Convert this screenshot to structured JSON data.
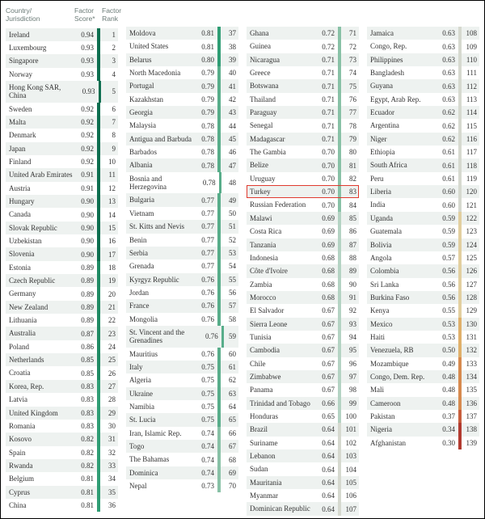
{
  "headers": {
    "country": "Country/\nJurisdiction",
    "score": "Factor\nScore*",
    "rank": "Factor\nRank"
  },
  "style": {
    "alt_row_bg": "#eef2f0",
    "row_bg": "#ffffff",
    "highlight_color": "#e03a2f",
    "bar_scale": {
      "stops": [
        {
          "min": 0.9,
          "color": "#0b6e4f"
        },
        {
          "min": 0.85,
          "color": "#1f8a63"
        },
        {
          "min": 0.8,
          "color": "#2f9d74"
        },
        {
          "min": 0.75,
          "color": "#58ad8a"
        },
        {
          "min": 0.7,
          "color": "#88c1a6"
        },
        {
          "min": 0.65,
          "color": "#b4d3c3"
        },
        {
          "min": 0.6,
          "color": "#d6d9cf"
        },
        {
          "min": 0.55,
          "color": "#e2cf9f"
        },
        {
          "min": 0.5,
          "color": "#e0b06a"
        },
        {
          "min": 0.45,
          "color": "#d78a4e"
        },
        {
          "min": 0.35,
          "color": "#c85e3c"
        },
        {
          "min": 0.0,
          "color": "#b23a2f"
        }
      ]
    }
  },
  "columns": [
    [
      {
        "country": "Ireland",
        "score": "0.94",
        "rank": "1"
      },
      {
        "country": "Luxembourg",
        "score": "0.93",
        "rank": "2"
      },
      {
        "country": "Singapore",
        "score": "0.93",
        "rank": "3"
      },
      {
        "country": "Norway",
        "score": "0.93",
        "rank": "4"
      },
      {
        "country": "Hong Kong SAR, China",
        "score": "0.93",
        "rank": "5"
      },
      {
        "country": "Sweden",
        "score": "0.92",
        "rank": "6"
      },
      {
        "country": "Malta",
        "score": "0.92",
        "rank": "7"
      },
      {
        "country": "Denmark",
        "score": "0.92",
        "rank": "8"
      },
      {
        "country": "Japan",
        "score": "0.92",
        "rank": "9"
      },
      {
        "country": "Finland",
        "score": "0.92",
        "rank": "10"
      },
      {
        "country": "United Arab Emirates",
        "score": "0.91",
        "rank": "11"
      },
      {
        "country": "Austria",
        "score": "0.91",
        "rank": "12"
      },
      {
        "country": "Hungary",
        "score": "0.90",
        "rank": "13"
      },
      {
        "country": "Canada",
        "score": "0.90",
        "rank": "14"
      },
      {
        "country": "Slovak Republic",
        "score": "0.90",
        "rank": "15"
      },
      {
        "country": "Uzbekistan",
        "score": "0.90",
        "rank": "16"
      },
      {
        "country": "Slovenia",
        "score": "0.90",
        "rank": "17"
      },
      {
        "country": "Estonia",
        "score": "0.89",
        "rank": "18"
      },
      {
        "country": "Czech Republic",
        "score": "0.89",
        "rank": "19"
      },
      {
        "country": "Germany",
        "score": "0.89",
        "rank": "20"
      },
      {
        "country": "New Zealand",
        "score": "0.89",
        "rank": "21"
      },
      {
        "country": "Lithuania",
        "score": "0.89",
        "rank": "22"
      },
      {
        "country": "Australia",
        "score": "0.87",
        "rank": "23"
      },
      {
        "country": "Poland",
        "score": "0.86",
        "rank": "24"
      },
      {
        "country": "Netherlands",
        "score": "0.85",
        "rank": "25"
      },
      {
        "country": "Croatia",
        "score": "0.85",
        "rank": "26"
      },
      {
        "country": "Korea, Rep.",
        "score": "0.83",
        "rank": "27"
      },
      {
        "country": "Latvia",
        "score": "0.83",
        "rank": "28"
      },
      {
        "country": "United Kingdom",
        "score": "0.83",
        "rank": "29"
      },
      {
        "country": "Romania",
        "score": "0.83",
        "rank": "30"
      },
      {
        "country": "Kosovo",
        "score": "0.82",
        "rank": "31"
      },
      {
        "country": "Spain",
        "score": "0.82",
        "rank": "32"
      },
      {
        "country": "Rwanda",
        "score": "0.82",
        "rank": "33"
      },
      {
        "country": "Belgium",
        "score": "0.81",
        "rank": "34"
      },
      {
        "country": "Cyprus",
        "score": "0.81",
        "rank": "35"
      },
      {
        "country": "China",
        "score": "0.81",
        "rank": "36"
      }
    ],
    [
      {
        "country": "Moldova",
        "score": "0.81",
        "rank": "37"
      },
      {
        "country": "United States",
        "score": "0.81",
        "rank": "38"
      },
      {
        "country": "Belarus",
        "score": "0.80",
        "rank": "39"
      },
      {
        "country": "North Macedonia",
        "score": "0.79",
        "rank": "40"
      },
      {
        "country": "Portugal",
        "score": "0.79",
        "rank": "41"
      },
      {
        "country": "Kazakhstan",
        "score": "0.79",
        "rank": "42"
      },
      {
        "country": "Georgia",
        "score": "0.79",
        "rank": "43"
      },
      {
        "country": "Malaysia",
        "score": "0.78",
        "rank": "44"
      },
      {
        "country": "Antigua and Barbuda",
        "score": "0.78",
        "rank": "45"
      },
      {
        "country": "Barbados",
        "score": "0.78",
        "rank": "46"
      },
      {
        "country": "Albania",
        "score": "0.78",
        "rank": "47"
      },
      {
        "country": "Bosnia and Herzegovina",
        "score": "0.78",
        "rank": "48"
      },
      {
        "country": "Bulgaria",
        "score": "0.77",
        "rank": "49"
      },
      {
        "country": "Vietnam",
        "score": "0.77",
        "rank": "50"
      },
      {
        "country": "St. Kitts and Nevis",
        "score": "0.77",
        "rank": "51"
      },
      {
        "country": "Benin",
        "score": "0.77",
        "rank": "52"
      },
      {
        "country": "Serbia",
        "score": "0.77",
        "rank": "53"
      },
      {
        "country": "Grenada",
        "score": "0.77",
        "rank": "54"
      },
      {
        "country": "Kyrgyz Republic",
        "score": "0.76",
        "rank": "55"
      },
      {
        "country": "Jordan",
        "score": "0.76",
        "rank": "56"
      },
      {
        "country": "France",
        "score": "0.76",
        "rank": "57"
      },
      {
        "country": "Mongolia",
        "score": "0.76",
        "rank": "58"
      },
      {
        "country": "St. Vincent and the Grenadines",
        "score": "0.76",
        "rank": "59"
      },
      {
        "country": "Mauritius",
        "score": "0.76",
        "rank": "60"
      },
      {
        "country": "Italy",
        "score": "0.75",
        "rank": "61"
      },
      {
        "country": "Algeria",
        "score": "0.75",
        "rank": "62"
      },
      {
        "country": "Ukraine",
        "score": "0.75",
        "rank": "63"
      },
      {
        "country": "Namibia",
        "score": "0.75",
        "rank": "64"
      },
      {
        "country": "St. Lucia",
        "score": "0.75",
        "rank": "65"
      },
      {
        "country": "Iran, Islamic Rep.",
        "score": "0.74",
        "rank": "66"
      },
      {
        "country": "Togo",
        "score": "0.74",
        "rank": "67"
      },
      {
        "country": "The Bahamas",
        "score": "0.74",
        "rank": "68"
      },
      {
        "country": "Dominica",
        "score": "0.74",
        "rank": "69"
      },
      {
        "country": "Nepal",
        "score": "0.73",
        "rank": "70"
      }
    ],
    [
      {
        "country": "Ghana",
        "score": "0.72",
        "rank": "71"
      },
      {
        "country": "Guinea",
        "score": "0.72",
        "rank": "72"
      },
      {
        "country": "Nicaragua",
        "score": "0.71",
        "rank": "73"
      },
      {
        "country": "Greece",
        "score": "0.71",
        "rank": "74"
      },
      {
        "country": "Botswana",
        "score": "0.71",
        "rank": "75"
      },
      {
        "country": "Thailand",
        "score": "0.71",
        "rank": "76"
      },
      {
        "country": "Paraguay",
        "score": "0.71",
        "rank": "77"
      },
      {
        "country": "Senegal",
        "score": "0.71",
        "rank": "78"
      },
      {
        "country": "Madagascar",
        "score": "0.71",
        "rank": "79"
      },
      {
        "country": "The Gambia",
        "score": "0.70",
        "rank": "80"
      },
      {
        "country": "Belize",
        "score": "0.70",
        "rank": "81"
      },
      {
        "country": "Uruguay",
        "score": "0.70",
        "rank": "82"
      },
      {
        "country": "Turkey",
        "score": "0.70",
        "rank": "83",
        "highlight": true
      },
      {
        "country": "Russian Federation",
        "score": "0.70",
        "rank": "84"
      },
      {
        "country": "Malawi",
        "score": "0.69",
        "rank": "85"
      },
      {
        "country": "Costa Rica",
        "score": "0.69",
        "rank": "86"
      },
      {
        "country": "Tanzania",
        "score": "0.69",
        "rank": "87"
      },
      {
        "country": "Indonesia",
        "score": "0.68",
        "rank": "88"
      },
      {
        "country": "Côte d'Ivoire",
        "score": "0.68",
        "rank": "89"
      },
      {
        "country": "Zambia",
        "score": "0.68",
        "rank": "90"
      },
      {
        "country": "Morocco",
        "score": "0.68",
        "rank": "91"
      },
      {
        "country": "El Salvador",
        "score": "0.67",
        "rank": "92"
      },
      {
        "country": "Sierra Leone",
        "score": "0.67",
        "rank": "93"
      },
      {
        "country": "Tunisia",
        "score": "0.67",
        "rank": "94"
      },
      {
        "country": "Cambodia",
        "score": "0.67",
        "rank": "95"
      },
      {
        "country": "Chile",
        "score": "0.67",
        "rank": "96"
      },
      {
        "country": "Zimbabwe",
        "score": "0.67",
        "rank": "97"
      },
      {
        "country": "Panama",
        "score": "0.67",
        "rank": "98"
      },
      {
        "country": "Trinidad and Tobago",
        "score": "0.66",
        "rank": "99"
      },
      {
        "country": "Honduras",
        "score": "0.65",
        "rank": "100"
      },
      {
        "country": "Brazil",
        "score": "0.64",
        "rank": "101"
      },
      {
        "country": "Suriname",
        "score": "0.64",
        "rank": "102"
      },
      {
        "country": "Lebanon",
        "score": "0.64",
        "rank": "103"
      },
      {
        "country": "Sudan",
        "score": "0.64",
        "rank": "104"
      },
      {
        "country": "Mauritania",
        "score": "0.64",
        "rank": "105"
      },
      {
        "country": "Myanmar",
        "score": "0.64",
        "rank": "106"
      },
      {
        "country": "Dominican Republic",
        "score": "0.64",
        "rank": "107"
      }
    ],
    [
      {
        "country": "Jamaica",
        "score": "0.63",
        "rank": "108"
      },
      {
        "country": "Congo, Rep.",
        "score": "0.63",
        "rank": "109"
      },
      {
        "country": "Philippines",
        "score": "0.63",
        "rank": "110"
      },
      {
        "country": "Bangladesh",
        "score": "0.63",
        "rank": "111"
      },
      {
        "country": "Guyana",
        "score": "0.63",
        "rank": "112"
      },
      {
        "country": "Egypt, Arab Rep.",
        "score": "0.63",
        "rank": "113"
      },
      {
        "country": "Ecuador",
        "score": "0.62",
        "rank": "114"
      },
      {
        "country": "Argentina",
        "score": "0.62",
        "rank": "115"
      },
      {
        "country": "Niger",
        "score": "0.62",
        "rank": "116"
      },
      {
        "country": "Ethiopia",
        "score": "0.61",
        "rank": "117"
      },
      {
        "country": "South Africa",
        "score": "0.61",
        "rank": "118"
      },
      {
        "country": "Peru",
        "score": "0.61",
        "rank": "119"
      },
      {
        "country": "Liberia",
        "score": "0.60",
        "rank": "120"
      },
      {
        "country": "India",
        "score": "0.60",
        "rank": "121"
      },
      {
        "country": "Uganda",
        "score": "0.59",
        "rank": "122"
      },
      {
        "country": "Guatemala",
        "score": "0.59",
        "rank": "123"
      },
      {
        "country": "Bolivia",
        "score": "0.59",
        "rank": "124"
      },
      {
        "country": "Angola",
        "score": "0.57",
        "rank": "125"
      },
      {
        "country": "Colombia",
        "score": "0.56",
        "rank": "126"
      },
      {
        "country": "Sri Lanka",
        "score": "0.56",
        "rank": "127"
      },
      {
        "country": "Burkina Faso",
        "score": "0.56",
        "rank": "128"
      },
      {
        "country": "Kenya",
        "score": "0.55",
        "rank": "129"
      },
      {
        "country": "Mexico",
        "score": "0.53",
        "rank": "130"
      },
      {
        "country": "Haiti",
        "score": "0.53",
        "rank": "131"
      },
      {
        "country": "Venezuela, RB",
        "score": "0.50",
        "rank": "132"
      },
      {
        "country": "Mozambique",
        "score": "0.49",
        "rank": "133"
      },
      {
        "country": "Congo, Dem. Rep.",
        "score": "0.48",
        "rank": "134"
      },
      {
        "country": "Mali",
        "score": "0.48",
        "rank": "135"
      },
      {
        "country": "Cameroon",
        "score": "0.48",
        "rank": "136"
      },
      {
        "country": "Pakistan",
        "score": "0.37",
        "rank": "137"
      },
      {
        "country": "Nigeria",
        "score": "0.34",
        "rank": "138"
      },
      {
        "country": "Afghanistan",
        "score": "0.30",
        "rank": "139"
      }
    ]
  ]
}
